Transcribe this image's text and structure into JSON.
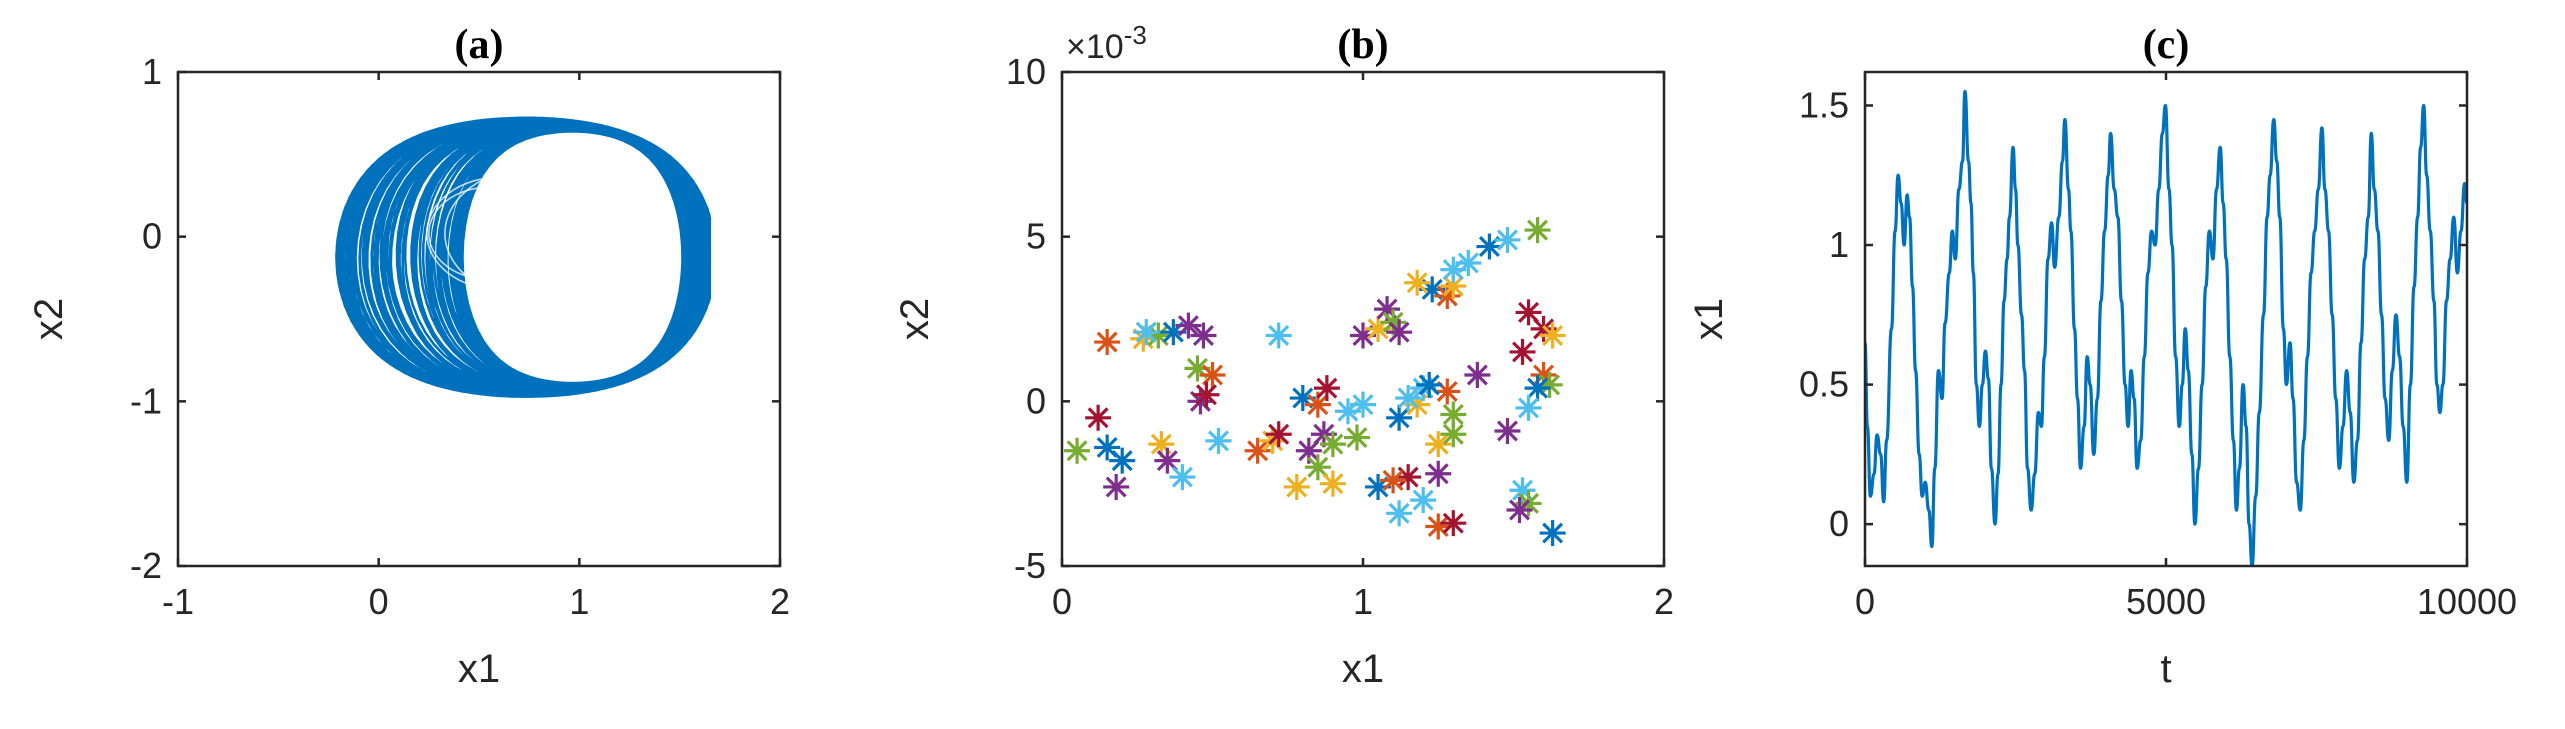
{
  "chart_data": [
    {
      "type": "line",
      "title": "(a)",
      "xlabel": "x1",
      "ylabel": "x2",
      "xlim": [
        -1,
        2
      ],
      "ylim": [
        -2,
        1
      ],
      "xticks": [
        "-1",
        "0",
        "1",
        "2"
      ],
      "yticks": [
        "-2",
        "-1",
        "0",
        "1"
      ],
      "grid": false,
      "series_color": "#0072BD",
      "description": "dense phase-portrait trajectory of the attractor",
      "extent": {
        "x": [
          -0.28,
          1.65
        ],
        "y": [
          -1.03,
          0.78
        ]
      }
    },
    {
      "type": "scatter",
      "title": "(b)",
      "xlabel": "x1",
      "ylabel": "x2",
      "xlim": [
        0,
        2
      ],
      "ylim": [
        -5,
        10
      ],
      "y_multiplier": "×10",
      "y_multiplier_exp": "-3",
      "xticks": [
        "0",
        "1",
        "2"
      ],
      "yticks": [
        "-5",
        "0",
        "5",
        "10"
      ],
      "grid": false,
      "marker": "asterisk",
      "colors": [
        "#0072BD",
        "#D95319",
        "#EDB120",
        "#7E2F8E",
        "#77AC30",
        "#4DBEEE",
        "#A2142F"
      ],
      "points": [
        [
          0.15,
          1.8,
          1
        ],
        [
          0.27,
          1.9,
          2
        ],
        [
          0.32,
          2.0,
          4
        ],
        [
          0.37,
          2.1,
          0
        ],
        [
          0.42,
          2.3,
          3
        ],
        [
          0.47,
          2.0,
          3
        ],
        [
          0.28,
          2.1,
          5
        ],
        [
          0.12,
          -0.5,
          6
        ],
        [
          0.05,
          -1.5,
          4
        ],
        [
          0.15,
          -1.4,
          0
        ],
        [
          0.2,
          -1.8,
          0
        ],
        [
          0.18,
          -2.6,
          3
        ],
        [
          0.33,
          -1.3,
          2
        ],
        [
          0.35,
          -1.8,
          3
        ],
        [
          0.4,
          -2.3,
          5
        ],
        [
          0.45,
          1.0,
          4
        ],
        [
          0.5,
          0.8,
          1
        ],
        [
          0.46,
          0.0,
          3
        ],
        [
          0.48,
          0.2,
          6
        ],
        [
          0.52,
          -1.2,
          5
        ],
        [
          0.65,
          -1.5,
          1
        ],
        [
          0.7,
          -1.2,
          2
        ],
        [
          0.72,
          -1.0,
          6
        ],
        [
          0.72,
          2.0,
          5
        ],
        [
          0.8,
          0.1,
          0
        ],
        [
          0.85,
          -0.1,
          1
        ],
        [
          0.88,
          0.4,
          6
        ],
        [
          0.82,
          -1.5,
          3
        ],
        [
          0.87,
          -1.0,
          3
        ],
        [
          0.9,
          -1.3,
          4
        ],
        [
          0.78,
          -2.6,
          2
        ],
        [
          0.85,
          -2.0,
          4
        ],
        [
          0.9,
          -2.5,
          2
        ],
        [
          0.98,
          -1.1,
          4
        ],
        [
          0.95,
          -0.3,
          5
        ],
        [
          1.0,
          -0.1,
          5
        ],
        [
          1.05,
          -2.6,
          0
        ],
        [
          1.0,
          2.0,
          3
        ],
        [
          1.05,
          2.2,
          2
        ],
        [
          1.08,
          2.8,
          3
        ],
        [
          1.1,
          2.4,
          4
        ],
        [
          1.12,
          2.1,
          3
        ],
        [
          1.12,
          -0.5,
          0
        ],
        [
          1.18,
          -0.1,
          2
        ],
        [
          1.15,
          0.1,
          5
        ],
        [
          1.2,
          0.4,
          5
        ],
        [
          1.15,
          -2.3,
          6
        ],
        [
          1.1,
          -2.4,
          1
        ],
        [
          1.12,
          -3.4,
          5
        ],
        [
          1.2,
          -3.0,
          5
        ],
        [
          1.25,
          -2.2,
          3
        ],
        [
          1.25,
          -3.8,
          1
        ],
        [
          1.3,
          -3.7,
          6
        ],
        [
          1.25,
          -1.3,
          2
        ],
        [
          1.3,
          -1.0,
          4
        ],
        [
          1.28,
          0.3,
          1
        ],
        [
          1.22,
          0.5,
          0
        ],
        [
          1.3,
          -0.4,
          4
        ],
        [
          1.38,
          0.8,
          3
        ],
        [
          1.23,
          3.4,
          0
        ],
        [
          1.18,
          3.6,
          2
        ],
        [
          1.28,
          3.2,
          1
        ],
        [
          1.3,
          3.5,
          2
        ],
        [
          1.3,
          4.0,
          5
        ],
        [
          1.35,
          4.2,
          5
        ],
        [
          1.42,
          4.7,
          0
        ],
        [
          1.48,
          4.9,
          5
        ],
        [
          1.58,
          5.2,
          4
        ],
        [
          1.53,
          1.5,
          6
        ],
        [
          1.55,
          2.7,
          6
        ],
        [
          1.6,
          2.2,
          6
        ],
        [
          1.63,
          2.0,
          2
        ],
        [
          1.6,
          0.8,
          1
        ],
        [
          1.62,
          0.5,
          4
        ],
        [
          1.58,
          0.4,
          0
        ],
        [
          1.55,
          -0.2,
          5
        ],
        [
          1.48,
          -0.9,
          3
        ],
        [
          1.53,
          -2.7,
          5
        ],
        [
          1.55,
          -3.1,
          4
        ],
        [
          1.52,
          -3.3,
          3
        ],
        [
          1.63,
          -4.0,
          0
        ]
      ]
    },
    {
      "type": "line",
      "title": "(c)",
      "xlabel": "t",
      "ylabel": "x1",
      "xlim": [
        0,
        10000
      ],
      "ylim": [
        -0.15,
        1.62
      ],
      "xticks": [
        "0",
        "5000",
        "10000"
      ],
      "yticks": [
        "0",
        "0.5",
        "1",
        "1.5"
      ],
      "grid": false,
      "series_color": "#0072BD",
      "description": "quasi-periodic time series of x1",
      "approx_points": [
        [
          0,
          0.65
        ],
        [
          40,
          0.35
        ],
        [
          90,
          0.1
        ],
        [
          150,
          0.18
        ],
        [
          200,
          0.32
        ],
        [
          260,
          0.25
        ],
        [
          310,
          0.08
        ],
        [
          360,
          0.3
        ],
        [
          440,
          0.7
        ],
        [
          500,
          1.05
        ],
        [
          550,
          1.25
        ],
        [
          600,
          1.15
        ],
        [
          650,
          1.0
        ],
        [
          700,
          1.18
        ],
        [
          740,
          1.1
        ],
        [
          790,
          0.85
        ],
        [
          840,
          0.55
        ],
        [
          900,
          0.25
        ],
        [
          950,
          0.1
        ],
        [
          1000,
          0.15
        ],
        [
          1060,
          0.05
        ],
        [
          1110,
          -0.08
        ],
        [
          1160,
          0.2
        ],
        [
          1220,
          0.55
        ],
        [
          1280,
          0.45
        ],
        [
          1330,
          0.72
        ],
        [
          1400,
          0.9
        ],
        [
          1450,
          1.05
        ],
        [
          1500,
          0.95
        ],
        [
          1560,
          1.2
        ],
        [
          1620,
          1.3
        ],
        [
          1660,
          1.55
        ],
        [
          1720,
          1.3
        ],
        [
          1760,
          1.15
        ],
        [
          1800,
          0.9
        ],
        [
          1850,
          0.5
        ],
        [
          1900,
          0.35
        ],
        [
          1950,
          0.5
        ],
        [
          2000,
          0.62
        ],
        [
          2050,
          0.52
        ],
        [
          2100,
          0.2
        ],
        [
          2160,
          0.0
        ],
        [
          2210,
          0.18
        ],
        [
          2260,
          0.5
        ],
        [
          2310,
          0.8
        ],
        [
          2360,
          0.95
        ],
        [
          2400,
          1.1
        ],
        [
          2460,
          1.35
        ],
        [
          2500,
          1.2
        ],
        [
          2540,
          1.0
        ],
        [
          2600,
          0.75
        ],
        [
          2650,
          0.55
        ],
        [
          2700,
          0.2
        ],
        [
          2760,
          0.05
        ],
        [
          2820,
          0.18
        ],
        [
          2880,
          0.4
        ],
        [
          2930,
          0.35
        ],
        [
          2980,
          0.6
        ],
        [
          3040,
          0.95
        ],
        [
          3100,
          1.08
        ],
        [
          3150,
          0.92
        ],
        [
          3220,
          1.1
        ],
        [
          3280,
          1.3
        ],
        [
          3320,
          1.45
        ],
        [
          3380,
          1.2
        ],
        [
          3420,
          1.05
        ],
        [
          3480,
          0.7
        ],
        [
          3530,
          0.45
        ],
        [
          3580,
          0.2
        ],
        [
          3640,
          0.35
        ],
        [
          3690,
          0.6
        ],
        [
          3740,
          0.5
        ],
        [
          3800,
          0.25
        ],
        [
          3860,
          0.45
        ],
        [
          3920,
          0.8
        ],
        [
          3980,
          1.05
        ],
        [
          4040,
          1.25
        ],
        [
          4080,
          1.4
        ],
        [
          4140,
          1.2
        ],
        [
          4200,
          1.1
        ],
        [
          4260,
          0.8
        ],
        [
          4320,
          0.5
        ],
        [
          4370,
          0.35
        ],
        [
          4420,
          0.55
        ],
        [
          4470,
          0.45
        ],
        [
          4520,
          0.2
        ],
        [
          4580,
          0.3
        ],
        [
          4640,
          0.6
        ],
        [
          4700,
          0.9
        ],
        [
          4760,
          1.05
        ],
        [
          4820,
          1.0
        ],
        [
          4880,
          1.2
        ],
        [
          4940,
          1.4
        ],
        [
          4990,
          1.5
        ],
        [
          5050,
          1.2
        ],
        [
          5100,
          1.0
        ],
        [
          5160,
          0.6
        ],
        [
          5220,
          0.35
        ],
        [
          5270,
          0.5
        ],
        [
          5320,
          0.7
        ],
        [
          5370,
          0.55
        ],
        [
          5430,
          0.25
        ],
        [
          5480,
          0.0
        ],
        [
          5540,
          0.2
        ],
        [
          5600,
          0.5
        ],
        [
          5660,
          0.85
        ],
        [
          5720,
          1.05
        ],
        [
          5780,
          0.95
        ],
        [
          5840,
          1.2
        ],
        [
          5900,
          1.35
        ],
        [
          5950,
          1.15
        ],
        [
          6000,
          0.95
        ],
        [
          6060,
          0.6
        ],
        [
          6120,
          0.3
        ],
        [
          6170,
          0.05
        ],
        [
          6220,
          0.2
        ],
        [
          6280,
          0.5
        ],
        [
          6330,
          0.35
        ],
        [
          6380,
          0.0
        ],
        [
          6430,
          -0.15
        ],
        [
          6490,
          0.1
        ],
        [
          6550,
          0.4
        ],
        [
          6620,
          0.75
        ],
        [
          6680,
          1.1
        ],
        [
          6730,
          1.25
        ],
        [
          6790,
          1.45
        ],
        [
          6840,
          1.3
        ],
        [
          6890,
          1.1
        ],
        [
          6950,
          0.7
        ],
        [
          7000,
          0.5
        ],
        [
          7060,
          0.65
        ],
        [
          7110,
          0.45
        ],
        [
          7170,
          0.15
        ],
        [
          7230,
          0.05
        ],
        [
          7290,
          0.3
        ],
        [
          7350,
          0.6
        ],
        [
          7410,
          0.9
        ],
        [
          7470,
          1.05
        ],
        [
          7530,
          1.2
        ],
        [
          7590,
          1.42
        ],
        [
          7640,
          1.2
        ],
        [
          7700,
          1.05
        ],
        [
          7760,
          0.75
        ],
        [
          7820,
          0.45
        ],
        [
          7880,
          0.2
        ],
        [
          7940,
          0.35
        ],
        [
          8000,
          0.55
        ],
        [
          8060,
          0.4
        ],
        [
          8120,
          0.15
        ],
        [
          8180,
          0.3
        ],
        [
          8240,
          0.65
        ],
        [
          8300,
          0.95
        ],
        [
          8360,
          1.1
        ],
        [
          8410,
          1.4
        ],
        [
          8460,
          1.2
        ],
        [
          8520,
          1.05
        ],
        [
          8580,
          0.75
        ],
        [
          8640,
          0.45
        ],
        [
          8700,
          0.3
        ],
        [
          8760,
          0.55
        ],
        [
          8820,
          0.75
        ],
        [
          8880,
          0.6
        ],
        [
          8940,
          0.35
        ],
        [
          9000,
          0.15
        ],
        [
          9060,
          0.5
        ],
        [
          9120,
          0.85
        ],
        [
          9180,
          1.1
        ],
        [
          9230,
          1.35
        ],
        [
          9280,
          1.5
        ],
        [
          9330,
          1.25
        ],
        [
          9390,
          1.05
        ],
        [
          9450,
          0.8
        ],
        [
          9500,
          0.5
        ],
        [
          9550,
          0.4
        ],
        [
          9600,
          0.5
        ],
        [
          9660,
          0.8
        ],
        [
          9720,
          0.95
        ],
        [
          9780,
          1.1
        ],
        [
          9840,
          0.9
        ],
        [
          9900,
          1.05
        ],
        [
          9960,
          1.22
        ],
        [
          10000,
          1.15
        ]
      ]
    }
  ]
}
